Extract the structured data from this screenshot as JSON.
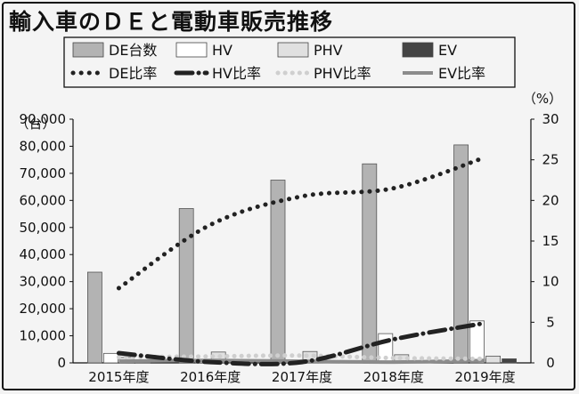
{
  "title": "輸入車のＤＥと電動車販売推移",
  "colors": {
    "de_bar": "#b3b3b3",
    "hv_bar": "#ffffff",
    "phv_bar": "#e0e0e0",
    "ev_bar": "#444444",
    "de_line": "#222222",
    "hv_line": "#222222",
    "phv_line": "#cfcfcf",
    "ev_line": "#8c8c8c",
    "background": "#f4f4f4"
  },
  "chart_data": {
    "type": "bar",
    "categories": [
      "2015年度",
      "2016年度",
      "2017年度",
      "2018年度",
      "2019年度"
    ],
    "series": [
      {
        "name": "DE台数",
        "kind": "bar",
        "axis": "left",
        "values": [
          33500,
          57000,
          67500,
          73500,
          80500
        ]
      },
      {
        "name": "HV",
        "kind": "bar",
        "axis": "left",
        "values": [
          3500,
          1000,
          500,
          10800,
          15500
        ]
      },
      {
        "name": "PHV",
        "kind": "bar",
        "axis": "left",
        "values": [
          2000,
          4000,
          4200,
          3000,
          2500
        ]
      },
      {
        "name": "EV",
        "kind": "bar",
        "axis": "left",
        "values": [
          1000,
          500,
          500,
          500,
          1500
        ]
      },
      {
        "name": "DE比率",
        "kind": "line",
        "axis": "right",
        "style": "dotted",
        "values": [
          9.2,
          17,
          20.5,
          21.5,
          25.3
        ]
      },
      {
        "name": "HV比率",
        "kind": "line",
        "axis": "right",
        "style": "dashdot",
        "values": [
          1.2,
          0.1,
          0.1,
          2.9,
          4.9
        ]
      },
      {
        "name": "PHV比率",
        "kind": "line",
        "axis": "right",
        "style": "dotted-light",
        "values": [
          0.7,
          0.8,
          0.9,
          0.6,
          0.5
        ]
      },
      {
        "name": "EV比率",
        "kind": "line",
        "axis": "right",
        "style": "solid",
        "values": [
          0.2,
          0.3,
          0.2,
          0.1,
          0.3
        ]
      }
    ],
    "ylabel_left": "（台）",
    "ylabel_right": "（%）",
    "ylim_left": [
      0,
      90000
    ],
    "ylim_right": [
      0,
      30
    ],
    "yticks_left": [
      "0",
      "10,000",
      "20,000",
      "30,000",
      "40,000",
      "50,000",
      "60,000",
      "70,000",
      "80,000",
      "90,000"
    ],
    "yticks_right": [
      "0",
      "5",
      "10",
      "15",
      "20",
      "25",
      "30"
    ],
    "legend_position": "top",
    "grid": false
  }
}
